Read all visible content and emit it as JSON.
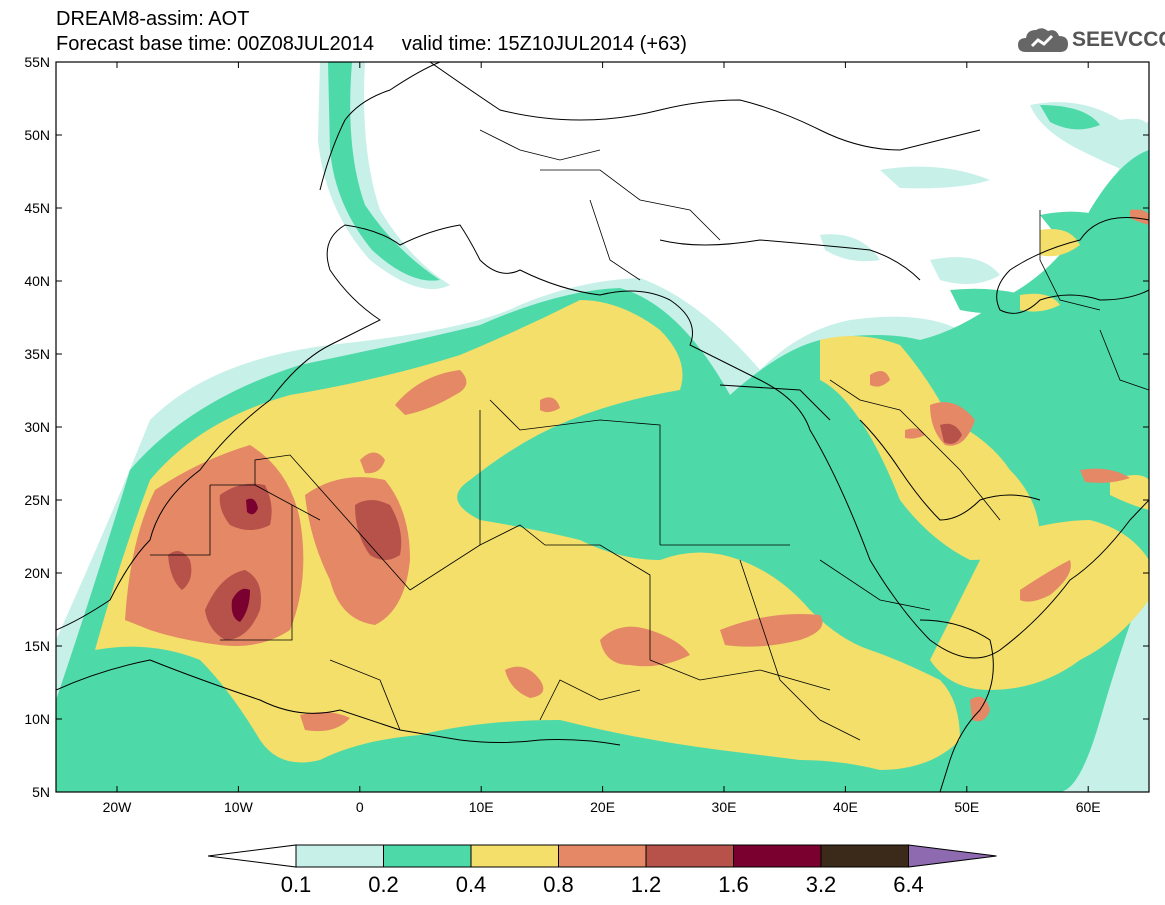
{
  "header": {
    "model": "DREAM8-assim: AOT",
    "base_time_label": "Forecast base time: 00Z08JUL2014",
    "valid_time_label": "valid time: 15Z10JUL2014 (+63)"
  },
  "logo": {
    "text": "SEEVCCC",
    "icon": "cloud-icon"
  },
  "map": {
    "lat_ticks": [
      "55N",
      "50N",
      "45N",
      "40N",
      "35N",
      "30N",
      "25N",
      "20N",
      "15N",
      "10N",
      "5N"
    ],
    "lon_ticks": [
      "20W",
      "10W",
      "0",
      "10E",
      "20E",
      "30E",
      "40E",
      "50E",
      "60E"
    ]
  },
  "colorbar": {
    "labels": [
      "0.1",
      "0.2",
      "0.4",
      "0.8",
      "1.2",
      "1.6",
      "3.2",
      "6.4"
    ],
    "colors": [
      "#ffffff",
      "#c6f0e8",
      "#4ed9a9",
      "#f3df6a",
      "#e48866",
      "#b6524a",
      "#7a0030",
      "#3b2a1a",
      "#8e6bb0"
    ]
  }
}
